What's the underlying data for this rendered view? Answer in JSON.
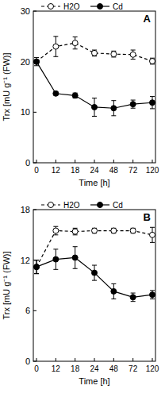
{
  "chart_data": [
    {
      "type": "line",
      "title": "A",
      "x_label": "Time [h]",
      "y_label": "Trx [mU g⁻¹ (FW)]",
      "categories": [
        "0",
        "12",
        "18",
        "24",
        "48",
        "72",
        "120"
      ],
      "ylim": [
        0,
        30
      ],
      "yticks": [
        0,
        10,
        20,
        30
      ],
      "legend": "top",
      "series": [
        {
          "name": "H2O",
          "color": "#000000",
          "marker": "open-circle",
          "line_style": "dashed",
          "values": [
            20,
            23,
            23.7,
            21.7,
            21.5,
            21.4,
            20.1
          ],
          "errors": [
            0,
            2,
            1.2,
            0.6,
            0.6,
            0.9,
            0.6
          ]
        },
        {
          "name": "Cd",
          "color": "#000000",
          "marker": "filled-circle",
          "line_style": "solid",
          "values": [
            20,
            13.7,
            13.3,
            11,
            10.8,
            11.6,
            11.9
          ],
          "errors": [
            0.8,
            0.3,
            0.5,
            1.8,
            1.5,
            0.8,
            1.2
          ]
        }
      ]
    },
    {
      "type": "line",
      "title": "B",
      "x_label": "Time [h]",
      "y_label": "Trx [mU g⁻¹ (FW)]",
      "categories": [
        "0",
        "12",
        "18",
        "24",
        "48",
        "72",
        "120"
      ],
      "ylim": [
        0,
        18
      ],
      "yticks": [
        0,
        6,
        12,
        18
      ],
      "legend": "top",
      "series": [
        {
          "name": "H2O",
          "color": "#000000",
          "marker": "open-circle",
          "line_style": "dashed",
          "values": [
            11.2,
            15.5,
            15.4,
            15.5,
            15.5,
            15.5,
            15
          ],
          "errors": [
            0.8,
            0.5,
            0.4,
            0.3,
            0.3,
            0.3,
            0.9
          ]
        },
        {
          "name": "Cd",
          "color": "#000000",
          "marker": "filled-circle",
          "line_style": "solid",
          "values": [
            11.2,
            12.1,
            12.3,
            10.5,
            8.3,
            7.6,
            7.9
          ],
          "errors": [
            0.8,
            1.2,
            1.3,
            0.9,
            0.9,
            0.5,
            0.5
          ]
        }
      ]
    }
  ]
}
